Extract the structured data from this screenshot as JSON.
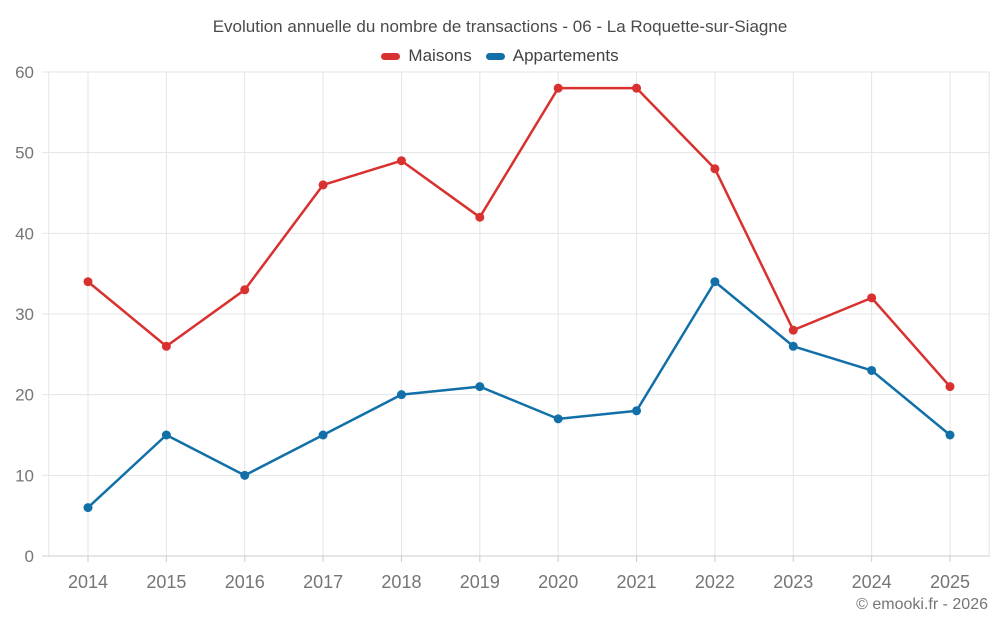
{
  "chart_data": {
    "type": "line",
    "title": "Evolution annuelle du nombre de transactions - 06 - La Roquette-sur-Siagne",
    "categories": [
      "2014",
      "2015",
      "2016",
      "2017",
      "2018",
      "2019",
      "2020",
      "2021",
      "2022",
      "2023",
      "2024",
      "2025"
    ],
    "series": [
      {
        "name": "Maisons",
        "color": "#d8312f",
        "values": [
          34,
          26,
          33,
          46,
          49,
          42,
          58,
          58,
          48,
          28,
          32,
          21
        ]
      },
      {
        "name": "Appartements",
        "color": "#1270a8",
        "values": [
          6,
          15,
          10,
          15,
          20,
          21,
          17,
          18,
          34,
          26,
          23,
          15
        ]
      }
    ],
    "xlabel": "",
    "ylabel": "",
    "ylim": [
      0,
      60
    ],
    "yticks": [
      0,
      10,
      20,
      30,
      40,
      50,
      60
    ],
    "grid": true,
    "legend_position": "top"
  },
  "footer": {
    "credit": "© emooki.fr - 2026"
  },
  "theme": {
    "background": "#ffffff",
    "grid_color": "#e5e5e5",
    "axis_color": "#cccccc",
    "tick_label_color": "#757575",
    "title_color": "#4a4a4a",
    "legend_label_color": "#424242",
    "footer_color": "#757575"
  }
}
